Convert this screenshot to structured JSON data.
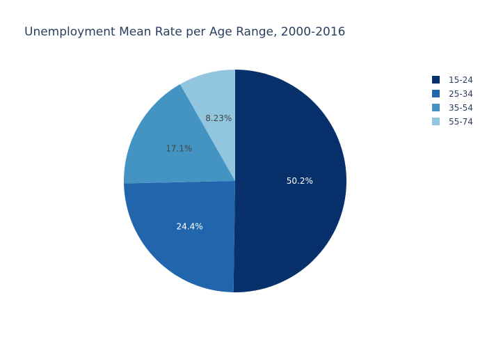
{
  "chart_data": {
    "type": "pie",
    "title": "Unemployment Mean Rate per Age Range, 2000-2016",
    "categories": [
      "15-24",
      "25-34",
      "35-54",
      "55-74"
    ],
    "values": [
      50.2,
      24.4,
      17.1,
      8.23
    ],
    "value_labels": [
      "50.2%",
      "24.4%",
      "17.1%",
      "8.23%"
    ],
    "colors": [
      "#08306b",
      "#2166ac",
      "#4393c3",
      "#92c5de"
    ],
    "label_colors": [
      "#ffffff",
      "#ffffff",
      "#444444",
      "#444444"
    ],
    "start": "top",
    "direction": "clockwise",
    "legend_placement": "top-right"
  }
}
